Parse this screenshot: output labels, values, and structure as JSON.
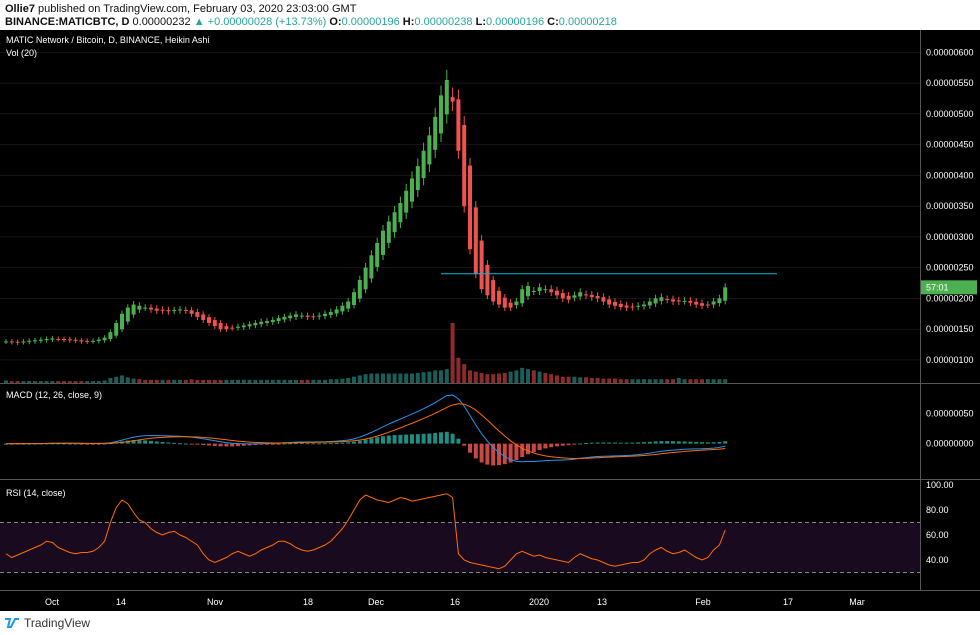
{
  "header": {
    "author": "Ollie7",
    "published_text": "published on TradingView.com, February 03, 2020 23:03:00 GMT",
    "symbol": "BINANCE:MATICBTC, D",
    "last": "0.00000232",
    "change": "+0.00000028 (+13.73%)",
    "o_label": "O:",
    "o": "0.00000196",
    "h_label": "H:",
    "h": "0.00000238",
    "l_label": "L:",
    "l": "0.00000196",
    "c_label": "C:",
    "c": "0.00000218"
  },
  "panes": {
    "main_title": "MATIC Network / Bitcoin, D, BINANCE, Heikin Ashi",
    "vol_title": "Vol (20)",
    "macd_title": "MACD (12, 26, close, 9)",
    "rsi_title": "RSI (14, close)",
    "price_tag": "57:01"
  },
  "footer": {
    "brand": "TradingView"
  },
  "colors": {
    "bg": "#000000",
    "up": "#26a69a",
    "candle_up": "#4caf50",
    "down": "#ef5350",
    "resistance": "#00bcd4",
    "macd": "#2196f3",
    "signal": "#ff6d00",
    "rsi": "#ff6d00",
    "rsi_band": "#1a0a1f",
    "axis_text": "#ffffff",
    "grid": "#2a2a2a"
  },
  "chart_data": [
    {
      "type": "candlestick",
      "title": "MATIC Network / Bitcoin, D, BINANCE, Heikin Ashi",
      "y_ticks": [
        "0.00000600",
        "0.00000550",
        "0.00000500",
        "0.00000450",
        "0.00000400",
        "0.00000350",
        "0.00000300",
        "0.00000250",
        "0.00000200",
        "0.00000150",
        "0.00000100"
      ],
      "ylim": [
        9.5e-07,
        6.2e-06
      ],
      "resistance": 2.4e-06,
      "x_ticks": [
        "Oct",
        "14",
        "Nov",
        "18",
        "Dec",
        "16",
        "2020",
        "13",
        "Feb",
        "17",
        "Mar"
      ],
      "close_series": [
        1.3,
        1.29,
        1.28,
        1.3,
        1.31,
        1.32,
        1.33,
        1.34,
        1.35,
        1.34,
        1.33,
        1.32,
        1.31,
        1.3,
        1.3,
        1.31,
        1.33,
        1.36,
        1.45,
        1.6,
        1.75,
        1.85,
        1.9,
        1.88,
        1.85,
        1.82,
        1.8,
        1.8,
        1.79,
        1.81,
        1.82,
        1.8,
        1.75,
        1.7,
        1.65,
        1.6,
        1.55,
        1.5,
        1.5,
        1.52,
        1.54,
        1.56,
        1.58,
        1.6,
        1.62,
        1.63,
        1.65,
        1.68,
        1.7,
        1.72,
        1.74,
        1.72,
        1.7,
        1.7,
        1.72,
        1.75,
        1.78,
        1.82,
        1.88,
        1.95,
        2.1,
        2.3,
        2.5,
        2.7,
        2.9,
        3.1,
        3.25,
        3.4,
        3.55,
        3.75,
        3.95,
        4.15,
        4.4,
        4.65,
        4.95,
        5.3,
        5.55,
        5.2,
        4.4,
        3.5,
        2.8,
        2.4,
        2.15,
        2.05,
        1.95,
        1.9,
        1.85,
        1.85,
        1.95,
        2.15,
        2.2,
        2.12,
        2.18,
        2.15,
        2.1,
        2.05,
        2.0,
        1.98,
        2.05,
        2.1,
        2.05,
        2.02,
        2.0,
        1.95,
        1.9,
        1.88,
        1.86,
        1.85,
        1.86,
        1.88,
        1.9,
        1.95,
        2.0,
        2.02,
        1.98,
        1.95,
        1.95,
        1.96,
        1.93,
        1.9,
        1.88,
        1.9,
        1.95,
        2.0,
        2.18
      ],
      "volume": [
        4,
        3,
        3,
        3,
        3,
        3,
        3,
        3,
        3,
        3,
        3,
        3,
        3,
        3,
        3,
        3,
        3,
        4,
        8,
        10,
        12,
        9,
        7,
        6,
        5,
        5,
        5,
        5,
        5,
        5,
        5,
        5,
        6,
        5,
        5,
        5,
        5,
        5,
        5,
        5,
        5,
        5,
        5,
        5,
        5,
        5,
        5,
        5,
        5,
        5,
        5,
        5,
        5,
        5,
        5,
        5,
        6,
        6,
        7,
        8,
        10,
        12,
        14,
        15,
        15,
        15,
        15,
        15,
        15,
        15,
        15,
        16,
        17,
        18,
        20,
        20,
        22,
        95,
        40,
        30,
        20,
        18,
        16,
        14,
        14,
        15,
        16,
        18,
        20,
        24,
        22,
        20,
        18,
        16,
        14,
        12,
        10,
        10,
        10,
        9,
        9,
        8,
        8,
        7,
        7,
        7,
        6,
        6,
        6,
        6,
        6,
        6,
        6,
        6,
        6,
        6,
        8,
        6,
        6,
        6,
        6,
        6,
        6,
        6,
        6,
        6
      ]
    },
    {
      "type": "line",
      "title": "MACD (12, 26, close, 9)",
      "y_ticks": [
        "0.00000050",
        "0.00000000"
      ],
      "ylim": [
        -5e-07,
        9e-07
      ]
    },
    {
      "type": "line",
      "title": "RSI (14, close)",
      "y_ticks": [
        "100.00",
        "80.00",
        "60.00",
        "40.00"
      ],
      "ylim": [
        20,
        100
      ],
      "bands": [
        70,
        30
      ],
      "rsi": [
        45,
        42,
        44,
        46,
        48,
        50,
        52,
        55,
        54,
        50,
        48,
        46,
        45,
        46,
        46,
        47,
        50,
        55,
        70,
        82,
        88,
        85,
        78,
        72,
        70,
        65,
        62,
        60,
        62,
        63,
        60,
        58,
        55,
        52,
        45,
        40,
        38,
        40,
        42,
        45,
        47,
        45,
        43,
        45,
        48,
        50,
        52,
        55,
        55,
        53,
        50,
        48,
        47,
        48,
        50,
        52,
        55,
        60,
        65,
        72,
        80,
        88,
        92,
        90,
        88,
        87,
        86,
        88,
        90,
        89,
        87,
        88,
        89,
        90,
        91,
        92,
        93,
        90,
        45,
        40,
        38,
        37,
        36,
        35,
        34,
        33,
        35,
        40,
        45,
        47,
        45,
        43,
        44,
        42,
        41,
        40,
        39,
        38,
        42,
        45,
        43,
        41,
        40,
        38,
        36,
        35,
        36,
        37,
        38,
        38,
        40,
        45,
        48,
        50,
        47,
        45,
        46,
        48,
        45,
        42,
        40,
        42,
        48,
        52,
        64
      ]
    }
  ]
}
